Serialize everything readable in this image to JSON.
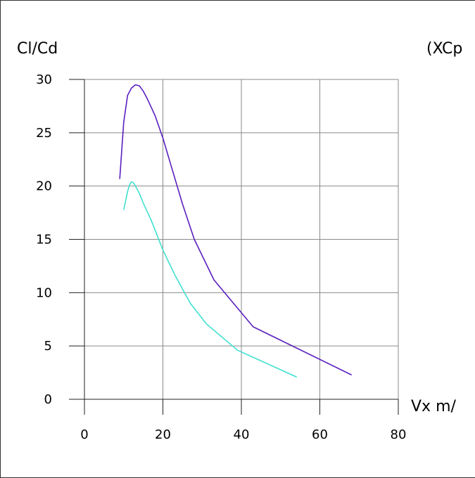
{
  "chart_data": {
    "type": "line",
    "ylabel": "Cl/Cd",
    "xlabel": "Vx m/",
    "top_right_label": "(XCp",
    "xlim": [
      0,
      80
    ],
    "ylim": [
      0,
      30
    ],
    "xticks": [
      0,
      20,
      40,
      60,
      80
    ],
    "yticks": [
      0,
      5,
      10,
      15,
      20,
      25,
      30
    ],
    "grid": true,
    "legend": "none",
    "series": [
      {
        "color": "#5a1fbf",
        "x": [
          9,
          10,
          11,
          12,
          13,
          14,
          15,
          16,
          17,
          18,
          20,
          22,
          25,
          28,
          33,
          43,
          68
        ],
        "y": [
          20.7,
          26.0,
          28.5,
          29.2,
          29.5,
          29.4,
          28.9,
          28.2,
          27.4,
          26.6,
          24.5,
          22.0,
          18.3,
          15.0,
          11.2,
          6.8,
          2.3
        ]
      },
      {
        "color": "#3fe0d0",
        "x": [
          10,
          10.5,
          11,
          11.5,
          12,
          12.5,
          13,
          14,
          15,
          17,
          20,
          23,
          27,
          31,
          39,
          54
        ],
        "y": [
          17.8,
          18.6,
          19.5,
          20.1,
          20.4,
          20.3,
          20.0,
          19.3,
          18.4,
          16.8,
          14.0,
          11.7,
          9.0,
          7.1,
          4.6,
          2.1
        ]
      }
    ]
  }
}
